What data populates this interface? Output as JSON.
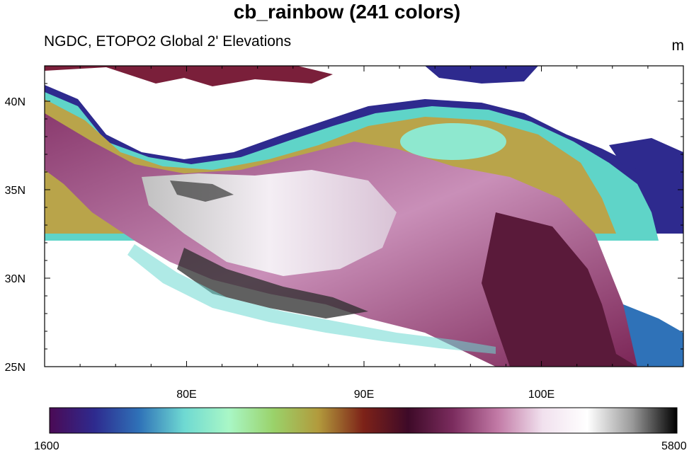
{
  "title": "cb_rainbow (241 colors)",
  "subtitle_left": "NGDC, ETOPO2 Global 2' Elevations",
  "units_label": "m",
  "map": {
    "lon_range": [
      72,
      108
    ],
    "lat_range": [
      25,
      42
    ],
    "x_ticks": [
      {
        "lon": 80,
        "label": "80E"
      },
      {
        "lon": 90,
        "label": "90E"
      },
      {
        "lon": 100,
        "label": "100E"
      }
    ],
    "y_ticks": [
      {
        "lat": 40,
        "label": "40N"
      },
      {
        "lat": 35,
        "label": "35N"
      },
      {
        "lat": 30,
        "label": "30N"
      },
      {
        "lat": 25,
        "label": "25N"
      }
    ]
  },
  "colorbar": {
    "colormap": "cb_rainbow",
    "num_colors": 241,
    "min_label": "1600",
    "max_label": "5800",
    "stops": [
      "#4b0a55",
      "#2e2a8e",
      "#2f72b8",
      "#6ed9d2",
      "#a9f7c6",
      "#9ad26a",
      "#b29a3c",
      "#7d2218",
      "#3e0a28",
      "#7b2c5e",
      "#c27aa6",
      "#f1e1ee",
      "#ffffff",
      "#9a9a9a",
      "#000000"
    ]
  }
}
